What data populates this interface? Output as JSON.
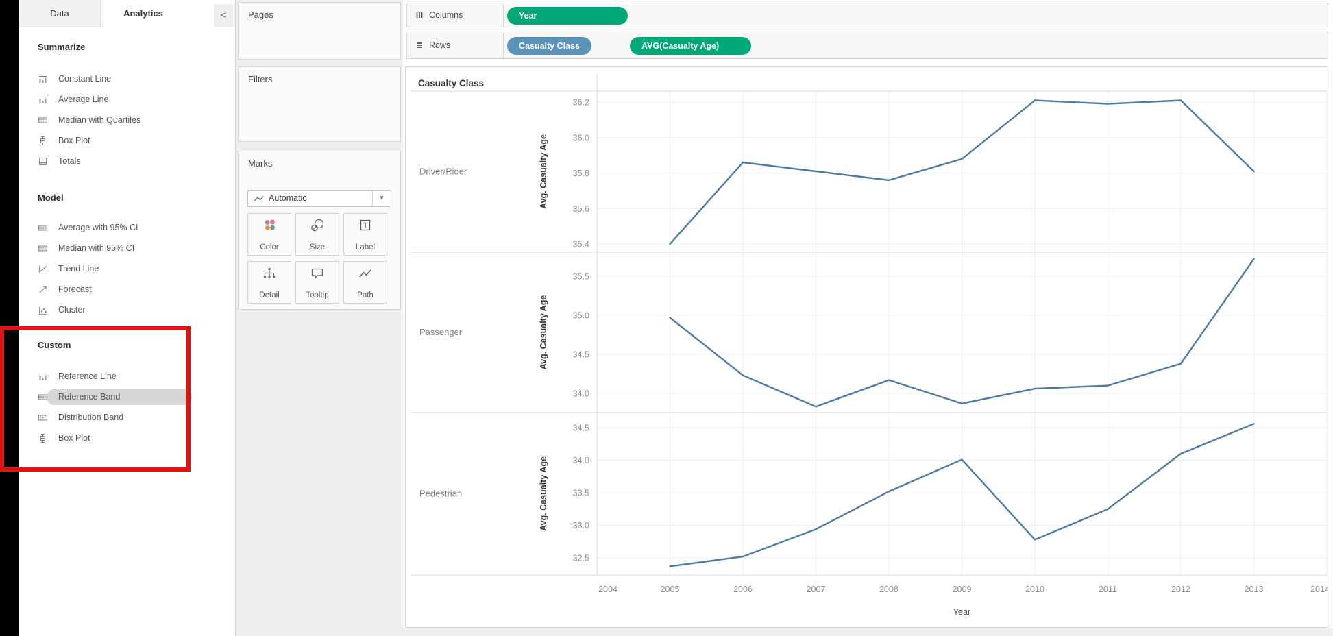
{
  "colors": {
    "pill_green": "#00a878",
    "pill_blue": "#5b92ba",
    "line": "#4e79a7",
    "annotation_red": "#e11212",
    "mark_color_dots": [
      "#ab7ab3",
      "#ec6c6c",
      "#f08c3d",
      "#69989f"
    ]
  },
  "tabs": {
    "data_label": "Data",
    "analytics_label": "Analytics",
    "collapse_glyph": "<"
  },
  "sidebar": {
    "sections": [
      {
        "title": "Summarize",
        "items": [
          {
            "label": "Constant Line",
            "icon": "constant-line"
          },
          {
            "label": "Average Line",
            "icon": "average-line"
          },
          {
            "label": "Median with Quartiles",
            "icon": "band"
          },
          {
            "label": "Box Plot",
            "icon": "box-plot"
          },
          {
            "label": "Totals",
            "icon": "totals"
          }
        ]
      },
      {
        "title": "Model",
        "items": [
          {
            "label": "Average with 95% CI",
            "icon": "band"
          },
          {
            "label": "Median with 95% CI",
            "icon": "band"
          },
          {
            "label": "Trend Line",
            "icon": "trend-line"
          },
          {
            "label": "Forecast",
            "icon": "forecast"
          },
          {
            "label": "Cluster",
            "icon": "cluster"
          }
        ]
      },
      {
        "title": "Custom",
        "items": [
          {
            "label": "Reference Line",
            "icon": "constant-line"
          },
          {
            "label": "Reference Band",
            "icon": "band",
            "highlighted": true
          },
          {
            "label": "Distribution Band",
            "icon": "distribution-band"
          },
          {
            "label": "Box Plot",
            "icon": "box-plot"
          }
        ]
      }
    ]
  },
  "cards": {
    "pages_label": "Pages",
    "filters_label": "Filters",
    "marks_label": "Marks"
  },
  "marks": {
    "mark_type_label": "Automatic",
    "caret_glyph": "▾",
    "buttons": [
      {
        "label": "Color",
        "icon": "color"
      },
      {
        "label": "Size",
        "icon": "size"
      },
      {
        "label": "Label",
        "icon": "label"
      },
      {
        "label": "Detail",
        "icon": "detail"
      },
      {
        "label": "Tooltip",
        "icon": "tooltip"
      },
      {
        "label": "Path",
        "icon": "path"
      }
    ]
  },
  "shelves": {
    "columns_label": "Columns",
    "rows_label": "Rows",
    "columns_pills": [
      {
        "label": "Year",
        "color": "green"
      }
    ],
    "rows_pills": [
      {
        "label": "Casualty Class",
        "color": "blue"
      },
      {
        "label": "AVG(Casualty Age)",
        "color": "green"
      }
    ]
  },
  "chart_data": {
    "type": "line",
    "title": "Casualty Class",
    "xlabel": "Year",
    "ylabel": "Avg. Casualty Age",
    "grid": true,
    "xlim": [
      2004,
      2014
    ],
    "x_ticks": [
      2004,
      2005,
      2006,
      2007,
      2008,
      2009,
      2010,
      2011,
      2012,
      2013,
      2014
    ],
    "series_x": [
      2005,
      2006,
      2007,
      2008,
      2009,
      2010,
      2011,
      2012,
      2013
    ],
    "panels": [
      {
        "label": "Driver/Rider",
        "yticks": [
          36.2,
          36.0,
          35.8,
          35.6,
          35.4
        ],
        "ylim": [
          35.354,
          36.262
        ],
        "values": [
          35.4,
          35.86,
          35.81,
          35.76,
          35.88,
          36.21,
          36.19,
          36.21,
          35.81
        ]
      },
      {
        "label": "Passenger",
        "yticks": [
          35.5,
          35.0,
          34.5,
          34.0
        ],
        "ylim": [
          33.754,
          35.807
        ],
        "values": [
          34.97,
          34.23,
          33.83,
          34.17,
          33.87,
          34.06,
          34.1,
          34.38,
          35.72
        ]
      },
      {
        "label": "Pedestrian",
        "yticks": [
          34.5,
          34.0,
          33.5,
          33.0,
          32.5
        ],
        "ylim": [
          32.237,
          34.732
        ],
        "values": [
          32.37,
          32.52,
          32.94,
          33.52,
          34.01,
          32.78,
          33.25,
          34.1,
          34.56
        ]
      }
    ]
  }
}
